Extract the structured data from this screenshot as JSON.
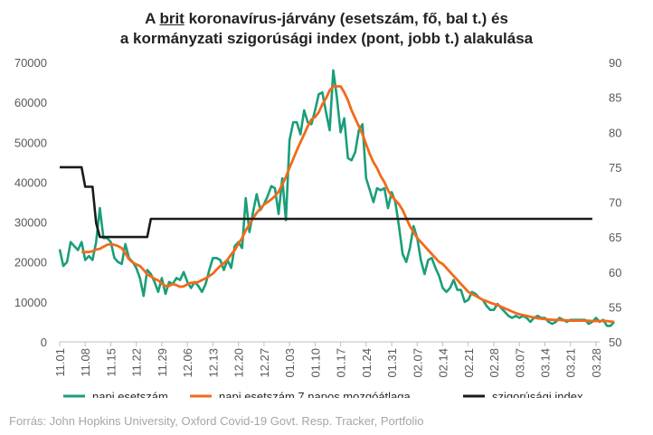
{
  "title": {
    "line1_pre": "A ",
    "line1_brit": "brit",
    "line1_post": " koronavírus-járvány (esetszám, fő, bal t.) és",
    "line2": "a kormányzati szigorúsági index (pont, jobb t.) alakulása"
  },
  "source": "Forrás: John Hopkins University, Oxford Covid-19 Govt. Resp. Tracker, Portfolio",
  "colors": {
    "cases": "#1a9e7a",
    "avg": "#f26a1b",
    "index": "#1a1a1a",
    "axis": "#bfbfbf",
    "text": "#595959"
  },
  "chart_data": {
    "type": "line",
    "y_left": {
      "min": 0,
      "max": 70000,
      "ticks": [
        "0",
        "10000",
        "20000",
        "30000",
        "40000",
        "50000",
        "60000",
        "70000"
      ]
    },
    "y_right": {
      "min": 50,
      "max": 90,
      "ticks": [
        "50",
        "55",
        "60",
        "65",
        "70",
        "75",
        "80",
        "85",
        "90"
      ]
    },
    "x_ticks": [
      "11.01",
      "11.08",
      "11.15",
      "11.22",
      "11.29",
      "12.06",
      "12.13",
      "12.20",
      "12.27",
      "01.03",
      "01.10",
      "01.17",
      "01.24",
      "01.31",
      "02.07",
      "02.14",
      "02.21",
      "02.28",
      "03.07",
      "03.14",
      "03.21",
      "03.28"
    ],
    "x_start": "11.01",
    "series": [
      {
        "name": "napi esetszám",
        "axis": "left",
        "values": [
          23200,
          19000,
          20000,
          25000,
          24000,
          23000,
          25000,
          20500,
          21500,
          20500,
          25000,
          33500,
          26000,
          26000,
          25000,
          21000,
          20000,
          19500,
          24500,
          21000,
          20000,
          18500,
          16000,
          11500,
          18000,
          17000,
          15000,
          12500,
          16000,
          12000,
          15000,
          14500,
          16000,
          15500,
          17500,
          15000,
          13500,
          15000,
          14000,
          12500,
          14500,
          18000,
          21000,
          21000,
          20500,
          18000,
          20500,
          18500,
          24000,
          25000,
          23500,
          36000,
          27500,
          32500,
          37000,
          33000,
          34500,
          36500,
          39000,
          38500,
          32000,
          41000,
          30500,
          50500,
          55000,
          55000,
          52000,
          58000,
          55000,
          54500,
          58000,
          62000,
          62500,
          57500,
          53000,
          68000,
          61000,
          52500,
          56000,
          46000,
          45500,
          47500,
          53000,
          54500,
          41000,
          38000,
          35000,
          38500,
          38000,
          38500,
          33500,
          37500,
          35000,
          29000,
          22000,
          20000,
          23500,
          29000,
          26000,
          20500,
          17000,
          20500,
          21000,
          18500,
          16500,
          13500,
          12500,
          13500,
          15500,
          13000,
          13000,
          10000,
          10500,
          12500,
          12000,
          11000,
          10500,
          9000,
          8000,
          8000,
          9500,
          8500,
          7500,
          6500,
          6000,
          6500,
          6000,
          6500,
          6000,
          5000,
          6000,
          6500,
          6000,
          6000,
          5000,
          4500,
          5000,
          6000,
          5500,
          5000,
          5500,
          5500,
          5500,
          5500,
          5500,
          4500,
          5000,
          6000,
          5000,
          5500,
          4000,
          4000,
          5000
        ]
      },
      {
        "name": "napi esetszám 7 napos mozgóátlaga",
        "axis": "left",
        "values": [
          null,
          null,
          null,
          null,
          null,
          null,
          22500,
          22500,
          22500,
          22700,
          23100,
          23300,
          23800,
          24300,
          24500,
          24300,
          24000,
          23500,
          22200,
          20700,
          19900,
          19400,
          19000,
          18000,
          16900,
          16400,
          15800,
          15400,
          14600,
          14000,
          14000,
          14500,
          14200,
          13800,
          13900,
          14400,
          14800,
          14800,
          15000,
          15500,
          15900,
          16500,
          17100,
          18100,
          19000,
          19700,
          20600,
          21900,
          23000,
          24600,
          26000,
          27900,
          29400,
          31000,
          32300,
          33400,
          34400,
          35000,
          35700,
          36500,
          37600,
          39400,
          41300,
          43600,
          45800,
          48000,
          50000,
          52000,
          54000,
          55700,
          56300,
          57500,
          59500,
          61000,
          63000,
          64000,
          64000,
          64000,
          62500,
          60500,
          58000,
          56000,
          54000,
          52000,
          49500,
          47000,
          45000,
          43500,
          41500,
          40000,
          38000,
          36500,
          35500,
          34500,
          33000,
          31000,
          29000,
          27500,
          26000,
          25000,
          24000,
          23000,
          22000,
          21000,
          20000,
          19500,
          18500,
          17500,
          16500,
          15500,
          14500,
          13500,
          12500,
          12000,
          11500,
          11000,
          10500,
          10200,
          9800,
          9500,
          9200,
          8800,
          8400,
          8000,
          7600,
          7200,
          6900,
          6700,
          6500,
          6300,
          6100,
          5900,
          5800,
          5700,
          5600,
          5500,
          5500,
          5500,
          5400,
          5400,
          5300,
          5300,
          5300,
          5300,
          5300,
          5300,
          5200,
          5200,
          5200,
          5200,
          5200,
          5100,
          5000
        ]
      },
      {
        "name": "szigorúsági index",
        "axis": "right",
        "values": [
          75,
          75,
          75,
          75,
          75,
          75,
          75,
          72.2,
          72.2,
          72.2,
          67,
          65,
          65,
          65,
          65,
          65,
          65,
          65,
          65,
          65,
          65,
          65,
          65,
          65,
          65,
          67.6,
          67.6,
          67.6,
          67.6,
          67.6,
          67.6,
          67.6,
          67.6,
          67.6,
          67.6,
          67.6,
          67.6,
          67.6,
          67.6,
          67.6,
          67.6,
          67.6,
          67.6,
          67.6,
          67.6,
          67.6,
          67.6,
          67.6,
          67.6,
          67.6,
          67.6,
          67.6,
          67.6,
          67.6,
          67.6,
          67.6,
          67.6,
          67.6,
          67.6,
          67.6,
          67.6,
          67.6,
          67.6,
          67.6,
          67.6,
          67.6,
          67.6,
          67.6,
          67.6,
          67.6,
          67.6,
          67.6,
          67.6,
          67.6,
          67.6,
          67.6,
          67.6,
          67.6,
          67.6,
          67.6,
          67.6,
          67.6,
          67.6,
          67.6,
          67.6,
          67.6,
          67.6,
          67.6,
          67.6,
          67.6,
          67.6,
          67.6,
          67.6,
          67.6,
          67.6,
          67.6,
          67.6,
          67.6,
          67.6,
          67.6,
          67.6,
          67.6,
          67.6,
          67.6,
          67.6,
          67.6,
          67.6,
          67.6,
          67.6,
          67.6,
          67.6,
          67.6,
          67.6,
          67.6,
          67.6,
          67.6,
          67.6,
          67.6,
          67.6,
          67.6,
          67.6,
          67.6,
          67.6,
          67.6,
          67.6,
          67.6,
          67.6,
          67.6,
          67.6,
          67.6,
          67.6,
          67.6,
          67.6,
          67.6,
          67.6,
          67.6,
          67.6,
          67.6,
          67.6,
          67.6,
          67.6,
          67.6,
          67.6,
          67.6,
          67.6,
          67.6,
          67.6
        ]
      }
    ]
  }
}
